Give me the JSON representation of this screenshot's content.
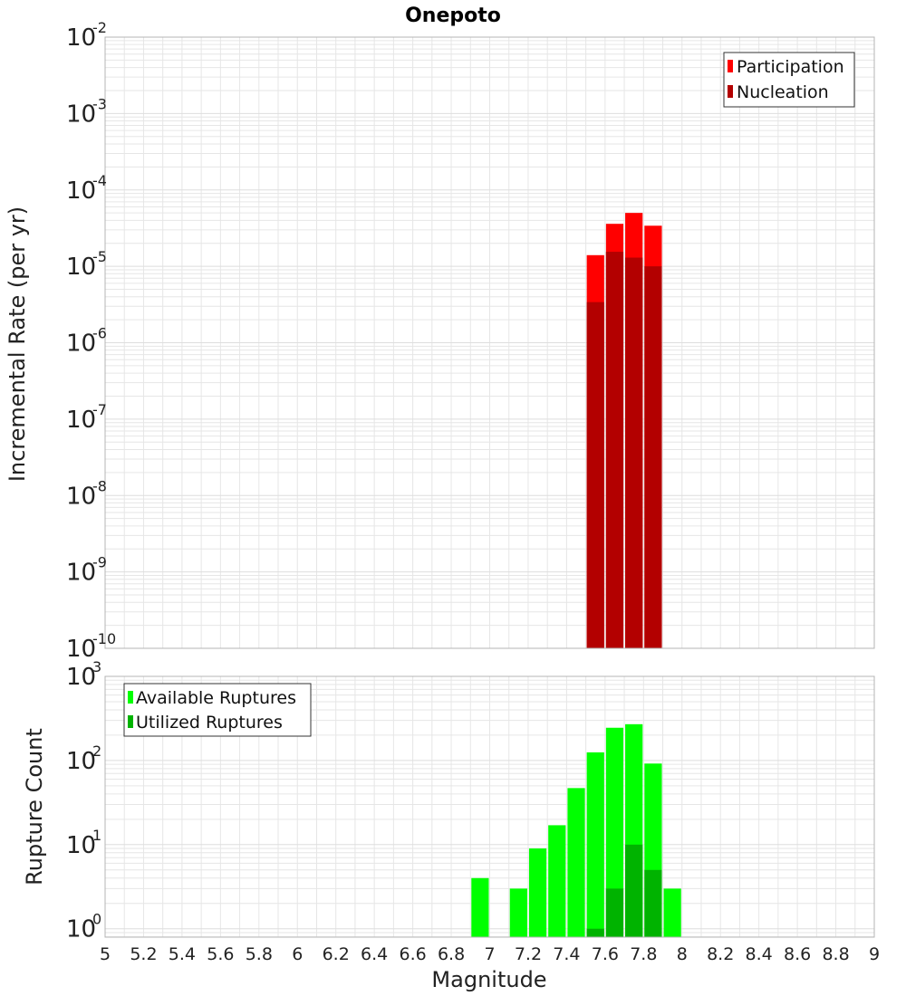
{
  "title": "Onepoto",
  "colors": {
    "participation": "#ff0000",
    "nucleation": "#b30000",
    "available": "#00ff00",
    "utilized": "#00b300",
    "grid": "#e6e6e6",
    "frame": "#b4b4b4"
  },
  "chart_data": [
    {
      "type": "bar",
      "name": "incremental-rate",
      "ylabel": "Incremental Rate (per yr)",
      "xlabel": "",
      "yscale": "log",
      "ylim_exp": [
        -10,
        -2
      ],
      "xlim": [
        5,
        9
      ],
      "bin_width": 0.1,
      "legend": {
        "position": "top-right",
        "items": [
          "Participation",
          "Nucleation"
        ]
      },
      "series": [
        {
          "name": "Participation",
          "x": [
            7.55,
            7.65,
            7.75,
            7.85
          ],
          "values": [
            1.4e-05,
            3.6e-05,
            5e-05,
            3.4e-05
          ]
        },
        {
          "name": "Nucleation",
          "x": [
            7.55,
            7.65,
            7.75,
            7.85
          ],
          "values": [
            3.4e-06,
            1.55e-05,
            1.3e-05,
            1e-05
          ]
        }
      ]
    },
    {
      "type": "bar",
      "name": "rupture-count",
      "ylabel": "Rupture Count",
      "xlabel": "Magnitude",
      "yscale": "log",
      "ylim_exp": [
        -0.1,
        3
      ],
      "xlim": [
        5,
        9
      ],
      "bin_width": 0.1,
      "legend": {
        "position": "top-left",
        "items": [
          "Available Ruptures",
          "Utilized Ruptures"
        ]
      },
      "series": [
        {
          "name": "Available Ruptures",
          "x": [
            6.95,
            7.15,
            7.25,
            7.35,
            7.45,
            7.55,
            7.65,
            7.75,
            7.85,
            7.95
          ],
          "values": [
            4,
            3,
            9,
            17,
            47,
            125,
            245,
            270,
            92,
            3
          ]
        },
        {
          "name": "Utilized Ruptures",
          "x": [
            7.55,
            7.65,
            7.75,
            7.85
          ],
          "values": [
            1,
            3,
            10,
            5
          ]
        }
      ]
    }
  ],
  "x_ticks": [
    "5",
    "5.2",
    "5.4",
    "5.6",
    "5.8",
    "6",
    "6.2",
    "6.4",
    "6.6",
    "6.8",
    "7",
    "7.2",
    "7.4",
    "7.6",
    "7.8",
    "8",
    "8.2",
    "8.4",
    "8.6",
    "8.8",
    "9"
  ],
  "top_y_ticks": [
    {
      "base": "10",
      "exp": "-2"
    },
    {
      "base": "10",
      "exp": "-3"
    },
    {
      "base": "10",
      "exp": "-4"
    },
    {
      "base": "10",
      "exp": "-5"
    },
    {
      "base": "10",
      "exp": "-6"
    },
    {
      "base": "10",
      "exp": "-7"
    },
    {
      "base": "10",
      "exp": "-8"
    },
    {
      "base": "10",
      "exp": "-9"
    },
    {
      "base": "10",
      "exp": "-10"
    }
  ],
  "bottom_y_ticks": [
    {
      "base": "10",
      "exp": "3"
    },
    {
      "base": "10",
      "exp": "2"
    },
    {
      "base": "10",
      "exp": "1"
    },
    {
      "base": "10",
      "exp": "0"
    }
  ]
}
